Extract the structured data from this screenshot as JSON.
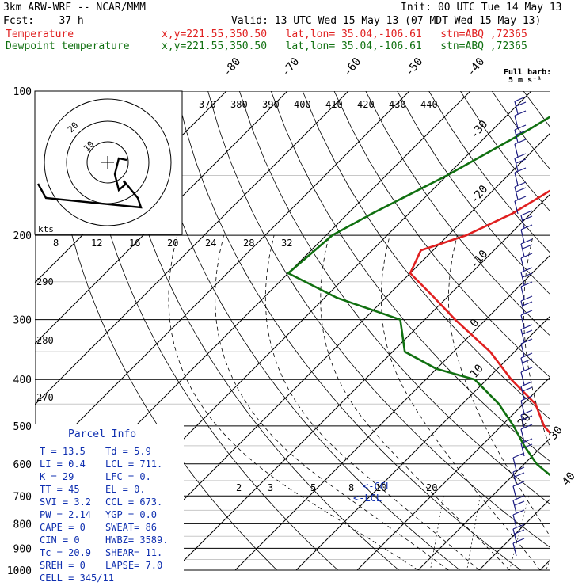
{
  "header": {
    "model": "3km ARW-WRF -- NCAR/MMM",
    "init": "Init: 00 UTC Tue 14 May 13",
    "fcst": "Fcst:    37 h",
    "valid": "Valid: 13 UTC Wed 15 May 13 (07 MDT Wed 15 May 13)",
    "temp_label": "Temperature",
    "temp_loc": "x,y=221.55,350.50   lat,lon= 35.04,-106.61   stn=ABQ ,72365",
    "dew_label": "Dewpoint temperature",
    "dew_loc": "x,y=221.55,350.50   lat,lon= 35.04,-106.61   stn=ABQ ,72365"
  },
  "chart_data": {
    "type": "line",
    "subtype": "skew-T log-p sounding",
    "y_axis": {
      "label": "",
      "scale": "log",
      "ticks": [
        100,
        200,
        300,
        400,
        500,
        600,
        700,
        800,
        900,
        1000
      ],
      "range": [
        100,
        1000
      ],
      "inverted": true
    },
    "x_axis": {
      "label": "",
      "skewed_isotherm_labels": [
        -80,
        -70,
        -60,
        -50,
        -40,
        -30,
        -20,
        -10,
        0,
        10,
        20,
        30,
        40
      ]
    },
    "theta_e_labels": [
      "370",
      "380",
      "390",
      "400",
      "410",
      "420",
      "430",
      "440"
    ],
    "theta_labels": [
      "290",
      "280",
      "270"
    ],
    "mixing_ratio_labels": [
      "2",
      "3",
      "5",
      "8",
      "10",
      "20"
    ],
    "series": [
      {
        "name": "Temperature",
        "color": "#e02020",
        "points": [
          [
            100,
            -45
          ],
          [
            125,
            -46
          ],
          [
            150,
            -49
          ],
          [
            180,
            -53
          ],
          [
            200,
            -57
          ],
          [
            215,
            -62
          ],
          [
            240,
            -60
          ],
          [
            270,
            -52
          ],
          [
            300,
            -45
          ],
          [
            350,
            -34
          ],
          [
            400,
            -26
          ],
          [
            450,
            -18
          ],
          [
            500,
            -13
          ],
          [
            550,
            -7
          ],
          [
            600,
            -3
          ],
          [
            650,
            1
          ],
          [
            700,
            4
          ],
          [
            750,
            8
          ],
          [
            790,
            12
          ],
          [
            810,
            13.5
          ]
        ]
      },
      {
        "name": "Dewpoint temperature",
        "color": "#107010",
        "points": [
          [
            100,
            -60
          ],
          [
            120,
            -64
          ],
          [
            150,
            -70
          ],
          [
            180,
            -76
          ],
          [
            200,
            -79
          ],
          [
            240,
            -80
          ],
          [
            270,
            -68
          ],
          [
            300,
            -54
          ],
          [
            350,
            -48
          ],
          [
            380,
            -40
          ],
          [
            400,
            -32
          ],
          [
            450,
            -24
          ],
          [
            500,
            -18
          ],
          [
            550,
            -13
          ],
          [
            600,
            -8
          ],
          [
            650,
            -2
          ],
          [
            700,
            0
          ],
          [
            750,
            2
          ],
          [
            790,
            4
          ],
          [
            810,
            5.9
          ]
        ]
      }
    ],
    "hodograph": {
      "axis_label": "kts",
      "ring_labels": [
        "10",
        "20"
      ],
      "x_ticks": [
        "8",
        "12",
        "16",
        "20",
        "24",
        "28",
        "32"
      ]
    },
    "wind_barbs_label": "Full barb:\n5 m s⁻¹",
    "annotations": [
      "<-CCL",
      "<-LCL"
    ]
  },
  "parcel_info": {
    "title": "Parcel Info",
    "rows": [
      [
        "T   =    13.5",
        "Td  =    5.9"
      ],
      [
        "LI  =     0.4",
        "LCL =  711."
      ],
      [
        "K   =      29",
        "LFC =     0."
      ],
      [
        "TT  =      45",
        "EL  =     0."
      ],
      [
        "SVI =     3.2",
        "CCL =  673."
      ],
      [
        "PW  =    2.14",
        "YGP =    0.0"
      ],
      [
        "CAPE =      0",
        "SWEAT=    86"
      ],
      [
        "CIN  =      0",
        "HWBZ= 3589."
      ],
      [
        "Tc  =    20.9",
        "SHEAR=   11."
      ],
      [
        "SREH =      0",
        "LAPSE=   7.0"
      ]
    ],
    "cell": "CELL = 345/11"
  }
}
